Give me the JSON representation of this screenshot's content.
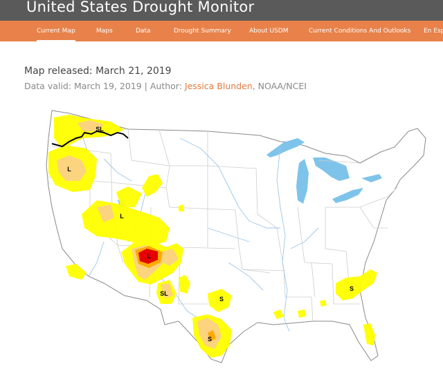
{
  "site": {
    "title": "United States Drought Monitor"
  },
  "nav": {
    "items": [
      "Current Map",
      "Maps",
      "Data",
      "Drought Summary",
      "About USDM",
      "Current Conditions And Outlooks",
      "En Español"
    ],
    "active_index": 0
  },
  "map_info": {
    "released_label": "Map released: March 21, 2019",
    "valid_prefix": "Data valid: March 19, 2019 | Author: ",
    "author": "Jessica Blunden",
    "author_suffix": ", NOAA/NCEI"
  },
  "map": {
    "impact_labels": [
      "SL",
      "L",
      "L",
      "L",
      "SL",
      "S",
      "S",
      "S"
    ],
    "colors": {
      "d0_abnormally_dry": "#ffff00",
      "d1_moderate": "#fcd37f",
      "d2_severe": "#ffaa00",
      "d3_extreme": "#e60000",
      "water": "#7ec4ea",
      "rivers": "#9cc6e8",
      "borders": "#c8c8c8",
      "outline": "#888888"
    }
  }
}
